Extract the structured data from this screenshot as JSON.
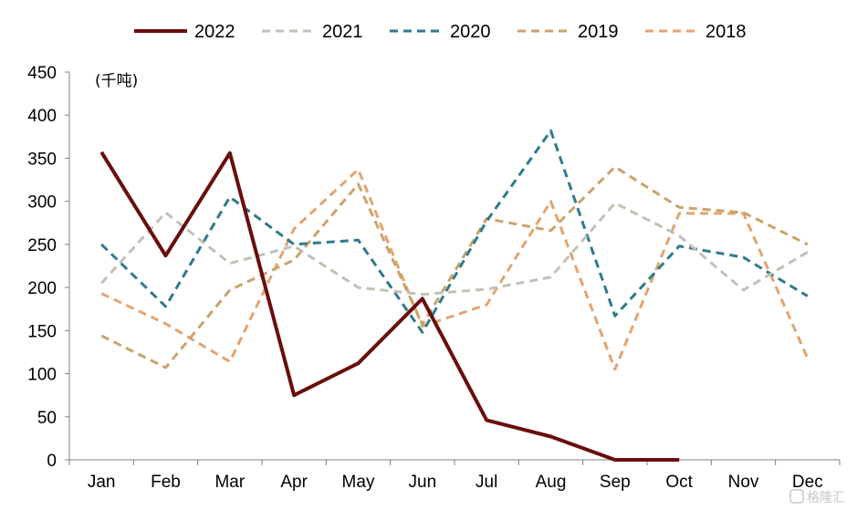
{
  "chart_data": {
    "type": "line",
    "unit_label": "(千吨)",
    "categories": [
      "Jan",
      "Feb",
      "Mar",
      "Apr",
      "May",
      "Jun",
      "Jul",
      "Aug",
      "Sep",
      "Oct",
      "Nov",
      "Dec"
    ],
    "ylim": [
      0,
      450
    ],
    "yticks": [
      0,
      50,
      100,
      150,
      200,
      250,
      300,
      350,
      400,
      450
    ],
    "grid": false,
    "legend_position": "top",
    "series": [
      {
        "name": "2022",
        "color": "#6b0d0d",
        "dashed": false,
        "values": [
          357,
          237,
          356,
          75,
          112,
          187,
          46,
          27,
          0,
          0,
          null,
          null
        ]
      },
      {
        "name": "2021",
        "color": "#c3c1b5",
        "dashed": true,
        "values": [
          205,
          287,
          228,
          248,
          200,
          192,
          198,
          212,
          298,
          260,
          197,
          241
        ]
      },
      {
        "name": "2020",
        "color": "#2e7b8c",
        "dashed": true,
        "values": [
          250,
          178,
          305,
          250,
          255,
          148,
          277,
          382,
          167,
          248,
          235,
          190
        ]
      },
      {
        "name": "2019",
        "color": "#c9a46a",
        "dashed": true,
        "values": [
          144,
          107,
          197,
          232,
          320,
          157,
          280,
          266,
          340,
          293,
          287,
          250
        ]
      },
      {
        "name": "2018",
        "color": "#e4a36e",
        "dashed": true,
        "values": [
          193,
          158,
          114,
          268,
          337,
          155,
          180,
          300,
          105,
          286,
          286,
          118
        ]
      }
    ]
  },
  "watermark": "格隆汇"
}
